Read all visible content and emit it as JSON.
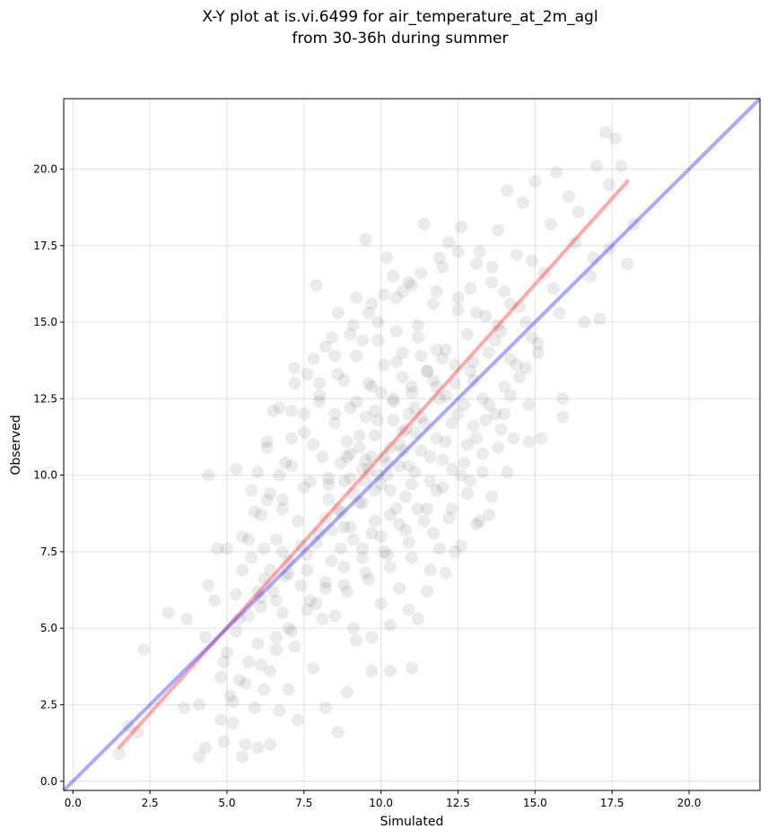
{
  "chart_data": {
    "type": "scatter",
    "title_lines": [
      "X-Y plot at is.vi.6499 for air_temperature_at_2m_agl",
      "from 30-36h during summer"
    ],
    "xlabel": "Simulated",
    "ylabel": "Observed",
    "xlim": [
      -0.3,
      22.3
    ],
    "ylim": [
      -0.3,
      22.3
    ],
    "xticks": [
      0.0,
      2.5,
      5.0,
      7.5,
      10.0,
      12.5,
      15.0,
      17.5,
      20.0
    ],
    "xtick_labels": [
      "0.0",
      "2.5",
      "5.0",
      "7.5",
      "10.0",
      "12.5",
      "15.0",
      "17.5",
      "20.0"
    ],
    "yticks": [
      0.0,
      2.5,
      5.0,
      7.5,
      10.0,
      12.5,
      15.0,
      17.5,
      20.0
    ],
    "ytick_labels": [
      "0.0",
      "2.5",
      "5.0",
      "7.5",
      "10.0",
      "12.5",
      "15.0",
      "17.5",
      "20.0"
    ],
    "grid": true,
    "point_color": "#000000",
    "point_alpha": 0.08,
    "points": [
      [
        1.5,
        0.9
      ],
      [
        1.8,
        1.8
      ],
      [
        2.1,
        1.6
      ],
      [
        2.3,
        4.3
      ],
      [
        3.1,
        5.5
      ],
      [
        3.6,
        2.4
      ],
      [
        3.7,
        5.3
      ],
      [
        4.1,
        0.8
      ],
      [
        4.1,
        2.5
      ],
      [
        4.3,
        1.1
      ],
      [
        4.3,
        4.7
      ],
      [
        4.4,
        6.4
      ],
      [
        4.4,
        10.0
      ],
      [
        4.6,
        5.9
      ],
      [
        4.7,
        7.6
      ],
      [
        4.8,
        2.0
      ],
      [
        4.9,
        1.3
      ],
      [
        4.9,
        3.9
      ],
      [
        5.0,
        7.6
      ],
      [
        5.1,
        2.8
      ],
      [
        5.2,
        1.9
      ],
      [
        5.3,
        6.1
      ],
      [
        5.3,
        10.2
      ],
      [
        5.4,
        3.3
      ],
      [
        5.5,
        0.8
      ],
      [
        5.5,
        6.9
      ],
      [
        5.6,
        1.2
      ],
      [
        5.7,
        3.9
      ],
      [
        5.7,
        7.9
      ],
      [
        5.8,
        9.5
      ],
      [
        5.9,
        2.4
      ],
      [
        6.0,
        1.1
      ],
      [
        6.0,
        4.5
      ],
      [
        6.1,
        5.7
      ],
      [
        6.2,
        3.0
      ],
      [
        6.2,
        7.6
      ],
      [
        6.3,
        10.9
      ],
      [
        6.4,
        1.2
      ],
      [
        6.4,
        3.6
      ],
      [
        6.5,
        6.2
      ],
      [
        6.5,
        12.1
      ],
      [
        6.6,
        4.7
      ],
      [
        6.7,
        2.3
      ],
      [
        6.8,
        5.5
      ],
      [
        6.8,
        8.9
      ],
      [
        6.9,
        10.4
      ],
      [
        7.0,
        3.0
      ],
      [
        7.0,
        6.8
      ],
      [
        7.1,
        12.1
      ],
      [
        7.2,
        4.4
      ],
      [
        7.2,
        13.5
      ],
      [
        7.3,
        2.0
      ],
      [
        7.4,
        7.7
      ],
      [
        7.5,
        9.6
      ],
      [
        7.6,
        13.3
      ],
      [
        7.7,
        5.9
      ],
      [
        7.8,
        3.7
      ],
      [
        7.8,
        11.0
      ],
      [
        7.9,
        16.2
      ],
      [
        8.0,
        8.1
      ],
      [
        8.0,
        12.6
      ],
      [
        8.1,
        5.3
      ],
      [
        8.2,
        14.2
      ],
      [
        8.2,
        2.4
      ],
      [
        8.3,
        9.9
      ],
      [
        8.4,
        7.2
      ],
      [
        8.5,
        11.7
      ],
      [
        8.6,
        15.3
      ],
      [
        8.6,
        1.6
      ],
      [
        8.7,
        8.8
      ],
      [
        8.8,
        6.4
      ],
      [
        8.8,
        13.1
      ],
      [
        8.9,
        10.6
      ],
      [
        8.9,
        2.9
      ],
      [
        9.0,
        12.2
      ],
      [
        9.1,
        7.9
      ],
      [
        9.2,
        15.8
      ],
      [
        9.2,
        4.6
      ],
      [
        9.3,
        11.3
      ],
      [
        9.4,
        9.1
      ],
      [
        9.4,
        14.4
      ],
      [
        9.5,
        6.8
      ],
      [
        9.5,
        17.7
      ],
      [
        9.6,
        10.2
      ],
      [
        9.7,
        12.9
      ],
      [
        9.7,
        3.6
      ],
      [
        9.8,
        8.5
      ],
      [
        9.9,
        11.8
      ],
      [
        9.9,
        15.0
      ],
      [
        10.0,
        5.8
      ],
      [
        10.0,
        9.7
      ],
      [
        10.1,
        13.6
      ],
      [
        10.2,
        7.4
      ],
      [
        10.2,
        17.1
      ],
      [
        10.3,
        10.9
      ],
      [
        10.3,
        3.6
      ],
      [
        10.4,
        12.4
      ],
      [
        10.5,
        8.9
      ],
      [
        10.5,
        15.8
      ],
      [
        10.6,
        6.3
      ],
      [
        10.7,
        11.4
      ],
      [
        10.7,
        14.0
      ],
      [
        10.8,
        9.3
      ],
      [
        10.9,
        16.3
      ],
      [
        10.9,
        7.8
      ],
      [
        11.0,
        12.7
      ],
      [
        11.0,
        3.7
      ],
      [
        11.1,
        10.1
      ],
      [
        11.2,
        14.9
      ],
      [
        11.2,
        5.3
      ],
      [
        11.3,
        11.9
      ],
      [
        11.4,
        8.5
      ],
      [
        11.4,
        18.2
      ],
      [
        11.5,
        13.4
      ],
      [
        11.6,
        9.8
      ],
      [
        11.6,
        6.9
      ],
      [
        11.7,
        15.6
      ],
      [
        11.8,
        11.2
      ],
      [
        11.8,
        12.9
      ],
      [
        11.9,
        7.6
      ],
      [
        12.0,
        16.8
      ],
      [
        12.0,
        10.5
      ],
      [
        12.1,
        14.1
      ],
      [
        12.2,
        8.6
      ],
      [
        12.2,
        17.6
      ],
      [
        12.3,
        11.7
      ],
      [
        12.4,
        13.0
      ],
      [
        12.4,
        7.5
      ],
      [
        12.5,
        15.4
      ],
      [
        12.6,
        10.0
      ],
      [
        12.6,
        18.1
      ],
      [
        12.7,
        12.3
      ],
      [
        12.8,
        14.6
      ],
      [
        12.8,
        9.4
      ],
      [
        12.9,
        16.1
      ],
      [
        13.0,
        11.6
      ],
      [
        13.0,
        13.7
      ],
      [
        13.1,
        8.4
      ],
      [
        13.2,
        17.3
      ],
      [
        13.3,
        12.5
      ],
      [
        13.3,
        10.1
      ],
      [
        13.4,
        15.2
      ],
      [
        13.5,
        14.0
      ],
      [
        13.5,
        8.7
      ],
      [
        13.6,
        16.8
      ],
      [
        13.7,
        12.0
      ],
      [
        13.8,
        18.0
      ],
      [
        13.8,
        10.9
      ],
      [
        13.9,
        14.7
      ],
      [
        14.0,
        16.0
      ],
      [
        14.0,
        12.9
      ],
      [
        14.1,
        19.3
      ],
      [
        14.2,
        13.8
      ],
      [
        14.3,
        11.2
      ],
      [
        14.4,
        17.2
      ],
      [
        14.5,
        15.5
      ],
      [
        14.6,
        18.9
      ],
      [
        14.7,
        13.5
      ],
      [
        14.8,
        11.1
      ],
      [
        14.9,
        17.0
      ],
      [
        15.0,
        19.6
      ],
      [
        15.1,
        14.3
      ],
      [
        15.2,
        11.2
      ],
      [
        15.3,
        16.6
      ],
      [
        15.5,
        18.2
      ],
      [
        15.7,
        19.9
      ],
      [
        15.8,
        15.3
      ],
      [
        15.9,
        12.5
      ],
      [
        15.9,
        11.9
      ],
      [
        16.1,
        19.1
      ],
      [
        16.3,
        17.6
      ],
      [
        16.4,
        18.6
      ],
      [
        16.6,
        15.0
      ],
      [
        16.8,
        16.5
      ],
      [
        17.0,
        20.1
      ],
      [
        17.1,
        15.1
      ],
      [
        17.3,
        21.2
      ],
      [
        17.4,
        17.4
      ],
      [
        17.6,
        21.0
      ],
      [
        17.8,
        20.1
      ],
      [
        18.0,
        16.9
      ],
      [
        18.2,
        18.2
      ],
      [
        17.4,
        19.5
      ],
      [
        16.9,
        17.1
      ],
      [
        15.6,
        16.1
      ],
      [
        14.9,
        14.5
      ],
      [
        13.7,
        14.4
      ],
      [
        12.9,
        13.4
      ],
      [
        12.1,
        12.6
      ],
      [
        11.3,
        10.8
      ],
      [
        10.6,
        10.3
      ],
      [
        9.8,
        9.5
      ],
      [
        9.1,
        9.4
      ],
      [
        8.4,
        8.2
      ],
      [
        7.6,
        7.4
      ],
      [
        6.9,
        6.7
      ],
      [
        6.1,
        6.0
      ],
      [
        5.4,
        5.3
      ],
      [
        9.5,
        10.5
      ],
      [
        9.8,
        11.3
      ],
      [
        10.2,
        10.0
      ],
      [
        9.0,
        9.9
      ],
      [
        8.6,
        8.9
      ],
      [
        10.8,
        11.5
      ],
      [
        11.1,
        12.2
      ],
      [
        10.4,
        11.8
      ],
      [
        9.3,
        10.9
      ],
      [
        8.9,
        11.1
      ],
      [
        10.0,
        12.7
      ],
      [
        9.6,
        13.0
      ],
      [
        10.5,
        13.7
      ],
      [
        11.3,
        13.9
      ],
      [
        11.7,
        13.1
      ],
      [
        10.9,
        12.0
      ],
      [
        9.2,
        12.4
      ],
      [
        8.5,
        12.0
      ],
      [
        8.1,
        10.6
      ],
      [
        7.7,
        9.8
      ],
      [
        8.3,
        9.2
      ],
      [
        9.0,
        8.3
      ],
      [
        9.7,
        8.1
      ],
      [
        10.3,
        8.7
      ],
      [
        11.0,
        9.7
      ],
      [
        11.6,
        10.6
      ],
      [
        12.1,
        11.1
      ],
      [
        12.5,
        12.0
      ],
      [
        11.9,
        12.5
      ],
      [
        11.4,
        11.7
      ],
      [
        10.7,
        10.8
      ],
      [
        10.1,
        10.6
      ],
      [
        9.4,
        10.2
      ],
      [
        8.8,
        9.8
      ],
      [
        8.2,
        8.6
      ],
      [
        7.9,
        7.8
      ],
      [
        8.7,
        7.6
      ],
      [
        9.4,
        7.3
      ],
      [
        10.1,
        7.5
      ],
      [
        10.8,
        8.2
      ],
      [
        11.5,
        8.9
      ],
      [
        12.0,
        9.6
      ],
      [
        12.7,
        10.4
      ],
      [
        13.1,
        11.2
      ],
      [
        13.5,
        12.3
      ],
      [
        13.0,
        13.1
      ],
      [
        12.4,
        13.6
      ],
      [
        11.8,
        14.1
      ],
      [
        11.2,
        14.5
      ],
      [
        10.5,
        14.7
      ],
      [
        9.9,
        14.4
      ],
      [
        9.2,
        13.9
      ],
      [
        8.6,
        13.3
      ],
      [
        8.0,
        12.4
      ],
      [
        7.5,
        11.4
      ],
      [
        7.1,
        10.3
      ],
      [
        6.8,
        9.2
      ],
      [
        7.3,
        8.5
      ],
      [
        7.6,
        6.9
      ],
      [
        8.2,
        6.5
      ],
      [
        8.9,
        6.2
      ],
      [
        9.6,
        6.6
      ],
      [
        10.3,
        7.0
      ],
      [
        11.0,
        7.3
      ],
      [
        11.7,
        8.1
      ],
      [
        12.3,
        8.9
      ],
      [
        12.9,
        9.8
      ],
      [
        13.3,
        10.7
      ],
      [
        13.9,
        11.5
      ],
      [
        14.2,
        12.6
      ],
      [
        14.5,
        13.2
      ],
      [
        13.8,
        14.9
      ],
      [
        13.1,
        15.3
      ],
      [
        12.5,
        15.8
      ],
      [
        11.8,
        16.0
      ],
      [
        11.0,
        16.2
      ],
      [
        10.4,
        16.5
      ],
      [
        9.7,
        15.6
      ],
      [
        9.1,
        14.9
      ],
      [
        8.4,
        14.5
      ],
      [
        7.8,
        13.8
      ],
      [
        7.2,
        13.0
      ],
      [
        6.7,
        12.2
      ],
      [
        6.3,
        11.1
      ],
      [
        6.0,
        10.1
      ],
      [
        6.4,
        9.4
      ],
      [
        6.1,
        8.7
      ],
      [
        6.6,
        7.9
      ],
      [
        7.0,
        7.2
      ],
      [
        7.4,
        6.4
      ],
      [
        7.9,
        5.8
      ],
      [
        8.5,
        5.4
      ],
      [
        9.1,
        5.0
      ],
      [
        9.7,
        4.7
      ],
      [
        10.3,
        5.1
      ],
      [
        10.9,
        5.6
      ],
      [
        11.5,
        6.2
      ],
      [
        12.1,
        6.8
      ],
      [
        12.6,
        7.7
      ],
      [
        13.2,
        8.5
      ],
      [
        13.6,
        9.3
      ],
      [
        14.1,
        10.1
      ],
      [
        7.0,
        5.0
      ],
      [
        6.6,
        5.9
      ],
      [
        6.2,
        6.6
      ],
      [
        5.8,
        7.3
      ],
      [
        5.5,
        8.0
      ],
      [
        5.9,
        8.8
      ],
      [
        6.3,
        9.2
      ],
      [
        6.7,
        10.0
      ],
      [
        7.1,
        11.2
      ],
      [
        7.5,
        12.0
      ],
      [
        8.0,
        13.0
      ],
      [
        8.5,
        13.9
      ],
      [
        9.0,
        14.6
      ],
      [
        9.6,
        15.3
      ],
      [
        10.1,
        15.9
      ],
      [
        10.7,
        16.0
      ],
      [
        11.3,
        16.6
      ],
      [
        11.9,
        17.1
      ],
      [
        12.5,
        17.3
      ],
      [
        13.1,
        16.9
      ],
      [
        13.6,
        16.3
      ],
      [
        14.2,
        15.6
      ],
      [
        14.7,
        15.0
      ],
      [
        15.1,
        14.0
      ],
      [
        14.4,
        13.6
      ],
      [
        14.8,
        12.3
      ],
      [
        14.0,
        12.0
      ],
      [
        13.4,
        11.8
      ],
      [
        12.8,
        11.0
      ],
      [
        12.3,
        10.2
      ],
      [
        11.8,
        9.5
      ],
      [
        11.2,
        8.9
      ],
      [
        10.6,
        8.4
      ],
      [
        10.0,
        8.0
      ],
      [
        9.4,
        7.6
      ],
      [
        8.8,
        7.0
      ],
      [
        8.2,
        6.3
      ],
      [
        7.6,
        5.6
      ],
      [
        7.1,
        4.9
      ],
      [
        6.6,
        4.3
      ],
      [
        6.1,
        3.8
      ],
      [
        5.6,
        3.2
      ],
      [
        5.2,
        2.6
      ],
      [
        4.8,
        3.4
      ],
      [
        5.0,
        4.2
      ],
      [
        5.3,
        4.9
      ],
      [
        5.7,
        5.4
      ],
      [
        6.0,
        6.2
      ],
      [
        6.4,
        6.9
      ],
      [
        6.8,
        7.5
      ],
      [
        9.9,
        10.0
      ],
      [
        10.2,
        10.4
      ],
      [
        9.5,
        9.8
      ],
      [
        10.6,
        11.0
      ],
      [
        9.7,
        10.6
      ],
      [
        10.3,
        9.5
      ],
      [
        9.3,
        9.1
      ],
      [
        10.9,
        10.3
      ],
      [
        11.1,
        11.4
      ],
      [
        8.8,
        8.3
      ],
      [
        9.0,
        10.7
      ],
      [
        9.8,
        12.1
      ],
      [
        10.4,
        12.5
      ],
      [
        11.0,
        12.9
      ],
      [
        11.5,
        13.4
      ],
      [
        12.0,
        13.8
      ],
      [
        10.7,
        13.2
      ],
      [
        9.5,
        11.9
      ],
      [
        8.7,
        10.4
      ],
      [
        8.3,
        9.7
      ]
    ],
    "regression_line": {
      "color": "#ff4040",
      "x1": 1.5,
      "y1": 1.1,
      "x2": 18.0,
      "y2": 19.6
    },
    "identity_line": {
      "color": "#4040ff",
      "x1": -0.3,
      "y1": -0.3,
      "x2": 22.3,
      "y2": 22.3
    }
  }
}
